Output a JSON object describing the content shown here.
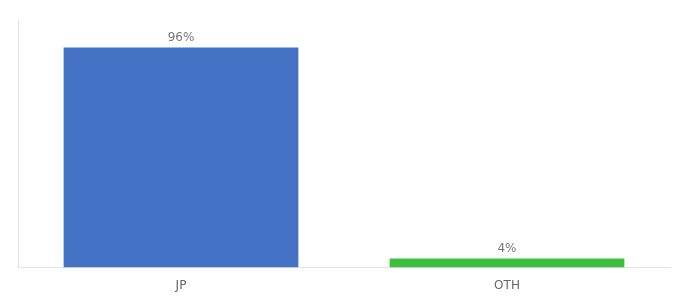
{
  "chart_data": {
    "type": "bar",
    "categories": [
      "JP",
      "OTH"
    ],
    "values": [
      96,
      4
    ],
    "value_labels": [
      "96%",
      "4%"
    ],
    "colors": [
      "#4472c4",
      "#3dbf3d"
    ],
    "ylim": [
      0,
      108
    ],
    "grid": false,
    "data_labels": true,
    "tick_labels": "x"
  }
}
